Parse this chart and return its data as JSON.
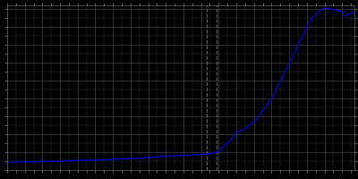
{
  "years": [
    1821,
    1831,
    1840,
    1852,
    1861,
    1871,
    1875,
    1880,
    1885,
    1890,
    1895,
    1900,
    1905,
    1910,
    1916,
    1925,
    1933,
    1939,
    1946,
    1950,
    1956,
    1961,
    1964,
    1967,
    1970,
    1972,
    1973,
    1974,
    1975,
    1976,
    1977,
    1978,
    1979,
    1980,
    1981,
    1982,
    1983,
    1984,
    1985,
    1986,
    1987,
    1990,
    1991,
    1992,
    1993,
    1994,
    1995,
    1996,
    1997,
    1998,
    1999,
    2000,
    2001,
    2002,
    2003,
    2004,
    2005,
    2006,
    2007,
    2008,
    2009,
    2010,
    2011,
    2012,
    2013,
    2014,
    2015,
    2016,
    2017
  ],
  "population": [
    2200,
    2300,
    2400,
    2500,
    2700,
    2800,
    2900,
    3000,
    3100,
    3200,
    3300,
    3500,
    3700,
    3900,
    4000,
    4200,
    4500,
    5000,
    8000,
    10500,
    12000,
    14000,
    16000,
    18000,
    20000,
    22000,
    23000,
    24000,
    25000,
    26000,
    27000,
    28000,
    29000,
    30000,
    31000,
    32000,
    33000,
    34000,
    35000,
    36000,
    37000,
    40000,
    41000,
    42000,
    42500,
    43000,
    43500,
    44000,
    44500,
    44800,
    45000,
    45100,
    45200,
    45100,
    45000,
    44900,
    44800,
    44700,
    44600,
    44500,
    44400,
    44200,
    43000,
    43200,
    43400,
    43600,
    43800,
    44000,
    43800
  ],
  "line_color": "#0000cd",
  "line_width": 1.0,
  "background_color": "#000000",
  "plot_bg_color": "#111111",
  "grid_color": "#555555",
  "axis_color": "#666666",
  "tick_color": "#888888",
  "xlim": [
    1821,
    2017
  ],
  "ylim": [
    0,
    46000
  ],
  "vline1_x": 1933,
  "vline2_x": 1939,
  "vline_color": "#666666",
  "vline_style": "--"
}
